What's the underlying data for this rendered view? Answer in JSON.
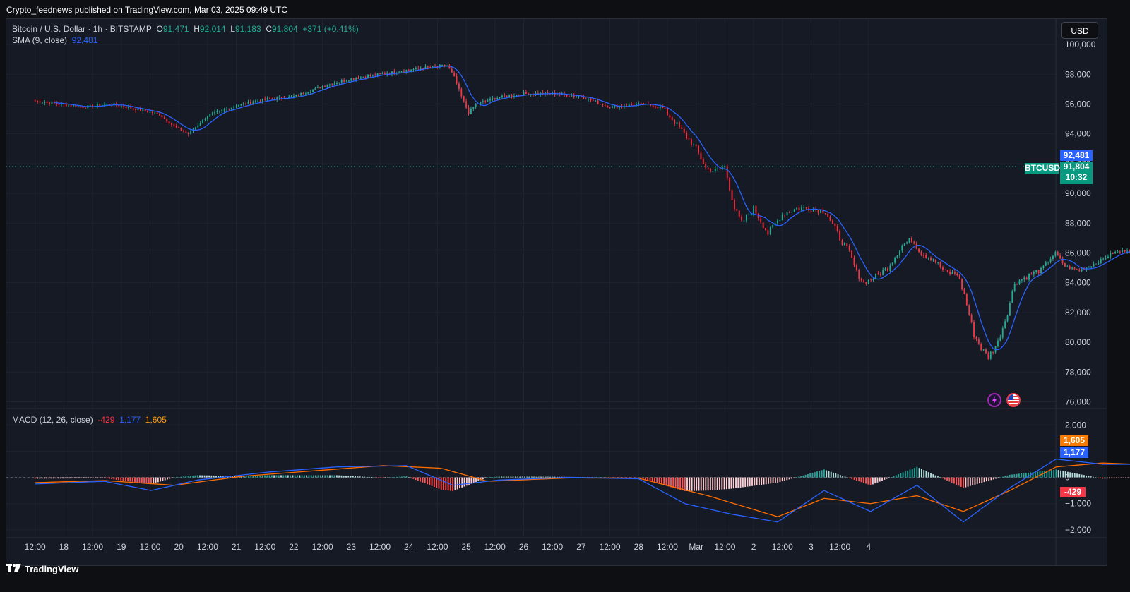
{
  "header": {
    "published": "Crypto_feednews published on TradingView.com, Mar 03, 2025 09:49 UTC"
  },
  "legend": {
    "symbol": "Bitcoin / U.S. Dollar · 1h · BITSTAMP",
    "o_label": "O",
    "o": "91,471",
    "h_label": "H",
    "h": "92,014",
    "l_label": "L",
    "l": "91,183",
    "c_label": "C",
    "c": "91,804",
    "change": "+371 (+0.41%)",
    "sma_title": "SMA (9, close)",
    "sma_value": "92,481",
    "macd_title": "MACD (12, 26, close)",
    "macd_hist": "-429",
    "macd_line": "1,177",
    "macd_signal": "1,605"
  },
  "currency_button": "USD",
  "price_tags": {
    "sma": "92,481",
    "symbol": "BTCUSD",
    "last": "91,804",
    "countdown": "10:32",
    "macd_signal": "1,605",
    "macd_line": "1,177",
    "macd_hist": "-429"
  },
  "footer": {
    "brand": "TradingView"
  },
  "colors": {
    "up": "#22ab94",
    "down": "#f23645",
    "sma": "#2962ff",
    "macd": "#2962ff",
    "signal": "#ff6d00",
    "hist_up_strong": "#26a69a",
    "hist_up_weak": "#b2dfdb",
    "hist_down_strong": "#ff5252",
    "hist_down_weak": "#ffcdd2"
  },
  "icons": [
    "spark-icon",
    "us-flag-icon",
    "tradingview-logo-icon"
  ],
  "chart_data": [
    {
      "type": "candlestick",
      "title": "Bitcoin / U.S. Dollar · 1h · BITSTAMP",
      "ylim": [
        75500,
        101000
      ],
      "y_ticks": [
        100000,
        98000,
        96000,
        94000,
        92000,
        90000,
        88000,
        86000,
        84000,
        82000,
        80000,
        78000,
        76000
      ],
      "y_tick_labels": [
        "100,000",
        "98,000",
        "96,000",
        "94,000",
        "92,000",
        "90,000",
        "88,000",
        "86,000",
        "84,000",
        "82,000",
        "80,000",
        "78,000",
        "76,000"
      ],
      "x_tick_labels": [
        "12:00",
        "18",
        "12:00",
        "19",
        "12:00",
        "20",
        "12:00",
        "21",
        "12:00",
        "22",
        "12:00",
        "23",
        "12:00",
        "24",
        "12:00",
        "25",
        "12:00",
        "26",
        "12:00",
        "27",
        "12:00",
        "28",
        "12:00",
        "Mar",
        "12:00",
        "2",
        "12:00",
        "3",
        "12:00",
        "4"
      ],
      "x_range_hours": [
        -12,
        420
      ],
      "grid": true,
      "close_path": [
        [
          0,
          96200
        ],
        [
          10,
          96000
        ],
        [
          20,
          95800
        ],
        [
          32,
          96000
        ],
        [
          44,
          95600
        ],
        [
          52,
          95300
        ],
        [
          58,
          94500
        ],
        [
          64,
          94000
        ],
        [
          72,
          95200
        ],
        [
          84,
          95900
        ],
        [
          96,
          96300
        ],
        [
          108,
          96500
        ],
        [
          120,
          97200
        ],
        [
          132,
          97700
        ],
        [
          144,
          98000
        ],
        [
          156,
          98300
        ],
        [
          166,
          98500
        ],
        [
          172,
          98600
        ],
        [
          175,
          97800
        ],
        [
          178,
          96500
        ],
        [
          181,
          95400
        ],
        [
          184,
          96000
        ],
        [
          192,
          96400
        ],
        [
          204,
          96700
        ],
        [
          216,
          96700
        ],
        [
          228,
          96500
        ],
        [
          240,
          95800
        ],
        [
          252,
          96000
        ],
        [
          258,
          95900
        ],
        [
          262,
          95700
        ],
        [
          266,
          95000
        ],
        [
          270,
          94200
        ],
        [
          276,
          93000
        ],
        [
          280,
          91700
        ],
        [
          284,
          91500
        ],
        [
          288,
          91800
        ],
        [
          292,
          89000
        ],
        [
          295,
          88000
        ],
        [
          300,
          89000
        ],
        [
          306,
          87300
        ],
        [
          312,
          88600
        ],
        [
          318,
          89000
        ],
        [
          324,
          89000
        ],
        [
          330,
          88800
        ],
        [
          336,
          87000
        ],
        [
          340,
          86000
        ],
        [
          343,
          84700
        ],
        [
          346,
          84000
        ],
        [
          350,
          84300
        ],
        [
          356,
          85000
        ],
        [
          362,
          86500
        ],
        [
          366,
          86900
        ],
        [
          370,
          86000
        ],
        [
          375,
          85600
        ],
        [
          380,
          84700
        ],
        [
          385,
          84600
        ],
        [
          388,
          83200
        ],
        [
          392,
          80500
        ],
        [
          395,
          79600
        ],
        [
          398,
          79000
        ],
        [
          402,
          80000
        ],
        [
          406,
          82000
        ],
        [
          409,
          84000
        ],
        [
          414,
          84400
        ],
        [
          420,
          84900
        ],
        [
          426,
          86000
        ],
        [
          430,
          85100
        ],
        [
          436,
          84800
        ],
        [
          444,
          85400
        ],
        [
          450,
          86000
        ],
        [
          456,
          86200
        ],
        [
          462,
          85900
        ],
        [
          468,
          85800
        ],
        [
          471,
          85300
        ],
        [
          474,
          89000
        ],
        [
          477,
          93500
        ],
        [
          480,
          94300
        ],
        [
          484,
          94000
        ],
        [
          488,
          93000
        ],
        [
          492,
          92200
        ],
        [
          496,
          91700
        ],
        [
          499,
          91800
        ]
      ],
      "sma_overlay": {
        "name": "SMA (9, close)",
        "last": 92481
      },
      "last_price": 91804
    },
    {
      "type": "line",
      "title": "MACD (12, 26, close)",
      "ylim": [
        -2300,
        2600
      ],
      "y_ticks": [
        2000,
        1000,
        0,
        -1000,
        -2000
      ],
      "y_tick_labels": [
        "2,000",
        "1,000",
        "0",
        "−1,000",
        "−2,000"
      ],
      "series": [
        {
          "name": "MACD",
          "points": [
            [
              0,
              -250
            ],
            [
              30,
              -150
            ],
            [
              50,
              -500
            ],
            [
              70,
              -100
            ],
            [
              100,
              200
            ],
            [
              130,
              400
            ],
            [
              160,
              450
            ],
            [
              180,
              -300
            ],
            [
              200,
              -100
            ],
            [
              230,
              0
            ],
            [
              260,
              -50
            ],
            [
              280,
              -1000
            ],
            [
              300,
              -1400
            ],
            [
              320,
              -1700
            ],
            [
              340,
              -500
            ],
            [
              360,
              -1300
            ],
            [
              380,
              -300
            ],
            [
              400,
              -1700
            ],
            [
              420,
              -400
            ],
            [
              440,
              700
            ],
            [
              460,
              500
            ],
            [
              480,
              500
            ],
            [
              500,
              2400
            ],
            [
              510,
              1700
            ],
            [
              515,
              1177
            ]
          ]
        },
        {
          "name": "Signal",
          "points": [
            [
              0,
              -200
            ],
            [
              30,
              -120
            ],
            [
              60,
              -300
            ],
            [
              90,
              50
            ],
            [
              120,
              250
            ],
            [
              150,
              450
            ],
            [
              175,
              350
            ],
            [
              195,
              -150
            ],
            [
              230,
              -20
            ],
            [
              260,
              -30
            ],
            [
              290,
              -700
            ],
            [
              320,
              -1500
            ],
            [
              340,
              -800
            ],
            [
              360,
              -1000
            ],
            [
              380,
              -700
            ],
            [
              400,
              -1300
            ],
            [
              420,
              -500
            ],
            [
              440,
              400
            ],
            [
              460,
              550
            ],
            [
              490,
              450
            ],
            [
              505,
              1900
            ],
            [
              515,
              1605
            ]
          ]
        }
      ],
      "last": {
        "hist": -429,
        "macd": 1177,
        "signal": 1605
      }
    }
  ]
}
